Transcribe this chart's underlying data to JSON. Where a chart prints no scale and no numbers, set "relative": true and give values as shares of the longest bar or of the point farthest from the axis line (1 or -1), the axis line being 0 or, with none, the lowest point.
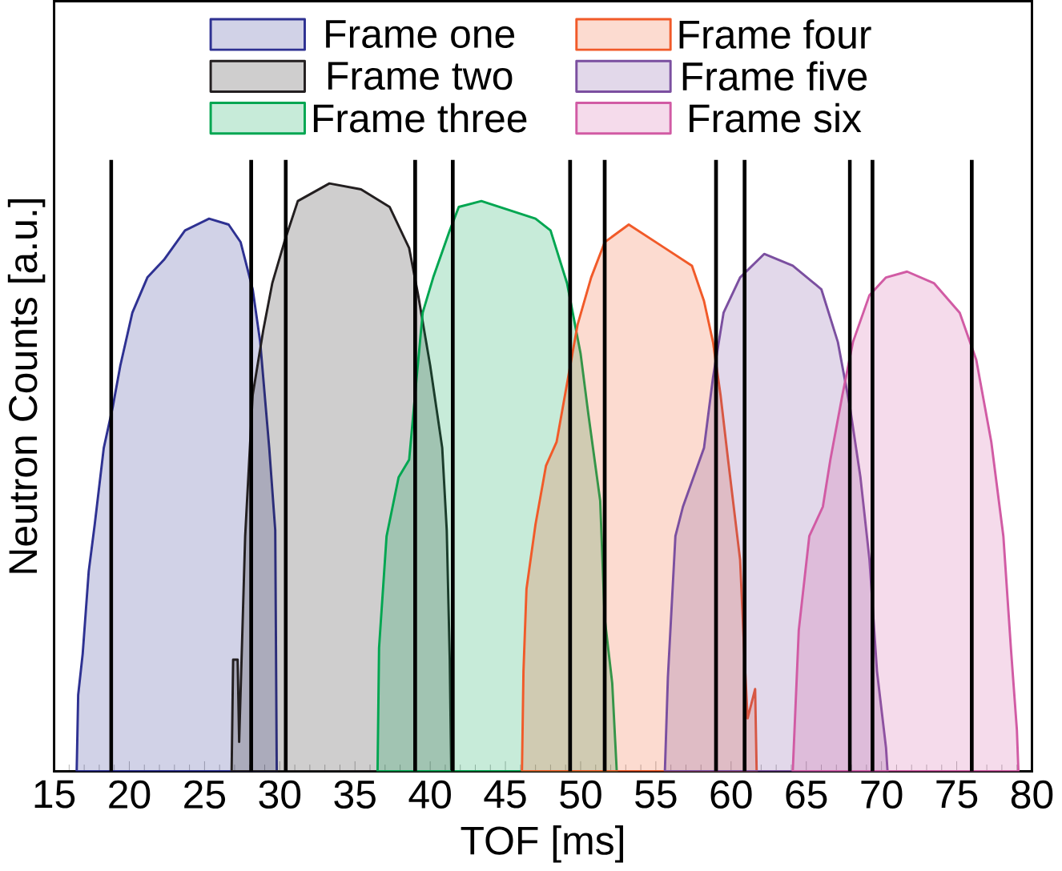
{
  "chart_data": {
    "type": "area",
    "relative": true,
    "xlabel": "TOF [ms]",
    "ylabel": "Neutron Counts [a.u.]",
    "xlim": [
      15,
      80
    ],
    "xticks": [
      15,
      20,
      25,
      30,
      35,
      40,
      45,
      50,
      55,
      60,
      65,
      70,
      75,
      80
    ],
    "legend": "top",
    "grid": false,
    "series": [
      {
        "name": "Frame one",
        "color": "#2e3192",
        "x": [
          16.5,
          16.6,
          16.9,
          17.3,
          17.7,
          18.3,
          18.9,
          19.4,
          20.2,
          21.2,
          22.3,
          23.7,
          25.3,
          26.6,
          27.4,
          28.2,
          28.7,
          29.3,
          29.7,
          29.8
        ],
        "values": [
          0,
          0.13,
          0.2,
          0.34,
          0.42,
          0.55,
          0.62,
          0.69,
          0.78,
          0.84,
          0.87,
          0.92,
          0.94,
          0.93,
          0.9,
          0.82,
          0.73,
          0.55,
          0.41,
          0
        ]
      },
      {
        "name": "Frame two",
        "color": "#231f20",
        "x": [
          26.8,
          26.9,
          27.2,
          27.3,
          27.7,
          28.2,
          28.9,
          29.5,
          30.3,
          31.2,
          33.3,
          35.4,
          37.3,
          38.6,
          39.2,
          40.0,
          40.8,
          41.1,
          41.3,
          41.4
        ],
        "values": [
          0,
          0.19,
          0.19,
          0.05,
          0.4,
          0.64,
          0.75,
          0.83,
          0.9,
          0.97,
          1,
          0.99,
          0.96,
          0.89,
          0.81,
          0.69,
          0.55,
          0.41,
          0.19,
          0
        ]
      },
      {
        "name": "Frame three",
        "color": "#00a651",
        "x": [
          36.5,
          36.6,
          37.1,
          37.9,
          38.6,
          39.1,
          39.5,
          40.2,
          41.3,
          41.9,
          43.4,
          47.0,
          48.0,
          49.1,
          50.0,
          50.5,
          51.3,
          51.6,
          52.1,
          52.3,
          52.4
        ],
        "values": [
          0,
          0.21,
          0.4,
          0.5,
          0.53,
          0.67,
          0.78,
          0.84,
          0.92,
          0.96,
          0.97,
          0.94,
          0.92,
          0.83,
          0.71,
          0.61,
          0.46,
          0.26,
          0.15,
          0.05,
          0
        ]
      },
      {
        "name": "Frame four",
        "color": "#f15a29",
        "x": [
          46.1,
          46.2,
          46.4,
          47.0,
          47.7,
          48.4,
          49.1,
          49.8,
          50.7,
          51.6,
          53.2,
          55.6,
          57.4,
          58.2,
          58.8,
          59.3,
          59.8,
          60.6,
          60.9,
          61.1,
          61.6,
          61.7
        ],
        "values": [
          0,
          0.17,
          0.31,
          0.42,
          0.52,
          0.56,
          0.66,
          0.76,
          0.84,
          0.9,
          0.93,
          0.89,
          0.86,
          0.8,
          0.73,
          0.64,
          0.53,
          0.36,
          0.19,
          0.09,
          0.14,
          0
        ]
      },
      {
        "name": "Frame five",
        "color": "#7b4fa0",
        "x": [
          55.6,
          55.8,
          56.3,
          56.8,
          57.5,
          58.2,
          58.8,
          59.5,
          60.6,
          62.2,
          64.1,
          66.0,
          67.1,
          67.9,
          68.6,
          69.2,
          69.7,
          70.3,
          70.4
        ],
        "values": [
          0,
          0.16,
          0.4,
          0.45,
          0.5,
          0.55,
          0.67,
          0.78,
          0.84,
          0.88,
          0.86,
          0.82,
          0.73,
          0.62,
          0.5,
          0.36,
          0.17,
          0.04,
          0
        ]
      },
      {
        "name": "Frame six",
        "color": "#d15ba4",
        "x": [
          64.1,
          64.5,
          65.2,
          66.1,
          66.6,
          67.4,
          68.1,
          69.2,
          70.3,
          71.7,
          73.5,
          75.2,
          76.3,
          77.3,
          78.1,
          78.6,
          79.0,
          79.1
        ],
        "values": [
          0,
          0.24,
          0.4,
          0.45,
          0.53,
          0.64,
          0.73,
          0.81,
          0.84,
          0.85,
          0.83,
          0.78,
          0.7,
          0.56,
          0.4,
          0.21,
          0.07,
          0
        ]
      }
    ],
    "ref_lines": [
      {
        "axis": "x",
        "value": 18.8,
        "color": "#000000"
      },
      {
        "axis": "x",
        "value": 28.1,
        "color": "#000000"
      },
      {
        "axis": "x",
        "value": 30.4,
        "color": "#000000"
      },
      {
        "axis": "x",
        "value": 39.0,
        "color": "#000000"
      },
      {
        "axis": "x",
        "value": 41.5,
        "color": "#000000"
      },
      {
        "axis": "x",
        "value": 49.3,
        "color": "#000000"
      },
      {
        "axis": "x",
        "value": 51.6,
        "color": "#000000"
      },
      {
        "axis": "x",
        "value": 59.0,
        "color": "#000000"
      },
      {
        "axis": "x",
        "value": 60.9,
        "color": "#000000"
      },
      {
        "axis": "x",
        "value": 67.9,
        "color": "#000000"
      },
      {
        "axis": "x",
        "value": 69.4,
        "color": "#000000"
      },
      {
        "axis": "x",
        "value": 76.0,
        "color": "#000000"
      }
    ]
  }
}
